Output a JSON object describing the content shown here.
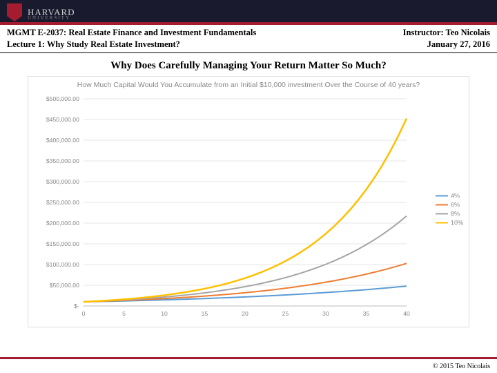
{
  "banner": {
    "university": "HARVARD",
    "subtitle": "UNIVERSITY"
  },
  "meta": {
    "course": "MGMT E-2037: Real Estate Finance and Investment Fundamentals",
    "instructor": "Instructor: Teo Nicolais",
    "lecture": "Lecture 1: Why Study Real Estate Investment?",
    "date": "January 27, 2016"
  },
  "slide_title": "Why Does Carefully Managing Your Return Matter So Much?",
  "chart": {
    "type": "line",
    "title": "How Much Capital Would You Accumulate from an Initial $10,000 investment Over the Course of 40 years?",
    "title_color": "#888888",
    "title_fontsize": 10.5,
    "background_color": "#ffffff",
    "grid_color": "#e6e6e6",
    "axis_label_color": "#888888",
    "xlim": [
      0,
      40
    ],
    "ylim": [
      0,
      500000
    ],
    "xtick_step": 5,
    "ytick_step": 50000,
    "xticks": [
      0,
      5,
      10,
      15,
      20,
      25,
      30,
      35,
      40
    ],
    "yticks_labels": [
      "$-",
      "$50,000.00",
      "$100,000.00",
      "$150,000.00",
      "$200,000.00",
      "$250,000.00",
      "$300,000.00",
      "$350,000.00",
      "$400,000.00",
      "$450,000.00",
      "$500,000.00"
    ],
    "series": [
      {
        "label": "4%",
        "color": "#5b9bd5",
        "width": 2,
        "rate": 0.04
      },
      {
        "label": "6%",
        "color": "#ed7d31",
        "width": 2,
        "rate": 0.06
      },
      {
        "label": "8%",
        "color": "#a5a5a5",
        "width": 2,
        "rate": 0.08
      },
      {
        "label": "10%",
        "color": "#ffc000",
        "width": 2.5,
        "rate": 0.1
      }
    ],
    "principal": 10000
  },
  "footer": {
    "copyright": "© 2015 Teo Nicolais",
    "sep_color": "#a51c30"
  }
}
